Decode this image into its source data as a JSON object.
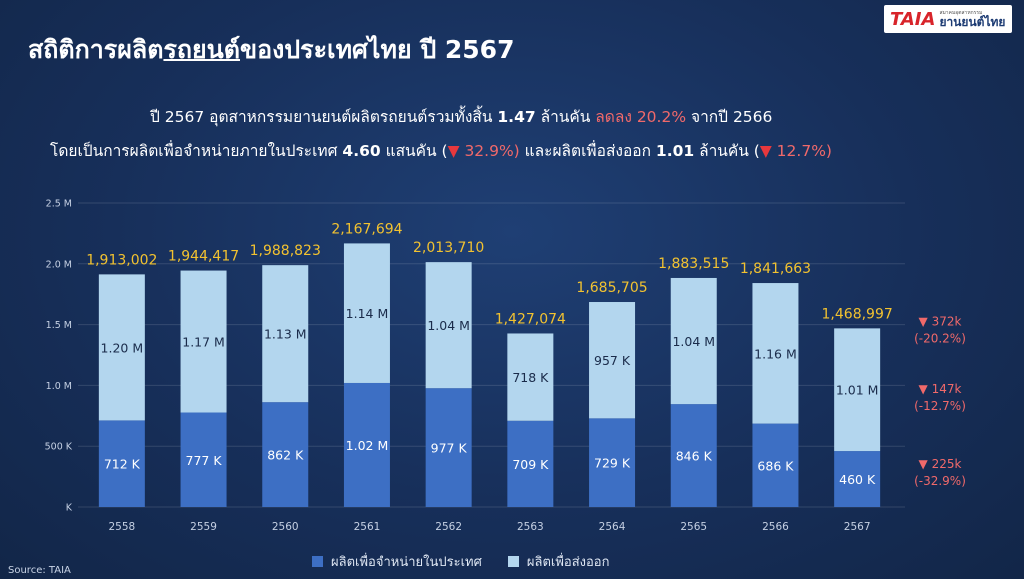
{
  "title_pre": "สถิติการผลิต",
  "title_ul": "รถยนต์",
  "title_post": "ของประเทศไทย ปี 2567",
  "logo": {
    "mark": "TAIA",
    "small": "สมาคมอุตสาหกรรม",
    "big": "ยานยนต์ไทย"
  },
  "summary": {
    "l1_a": "ปี 2567 อุตสาหกรรมยานยนต์ผลิตรถยนต์รวมทั้งสิ้น ",
    "l1_b": "1.47",
    "l1_c": " ล้านคัน ",
    "l1_d": "ลดลง 20.2%",
    "l1_e": " จากปี 2566",
    "l2_a": "โดยเป็นการผลิตเพื่อจำหน่ายภายในประเทศ ",
    "l2_b": "4.60",
    "l2_c": " แสนคัน (",
    "l2_tri1": "▼",
    "l2_d": " 32.9%)",
    "l2_e": "  และผลิตเพื่อส่งออก ",
    "l2_f": "1.01",
    "l2_g": " ล้านคัน (",
    "l2_tri2": "▼",
    "l2_h": " 12.7%)"
  },
  "colors": {
    "domestic": "#3d6fc4",
    "export": "#b3d6ee",
    "total": "#f2c230",
    "delta": "#f0696a",
    "axis": "#c5d0e3"
  },
  "chart_data": {
    "type": "bar",
    "stacked": true,
    "categories": [
      "2558",
      "2559",
      "2560",
      "2561",
      "2562",
      "2563",
      "2564",
      "2565",
      "2566",
      "2567"
    ],
    "series": [
      {
        "name": "ผลิตเพื่อจำหน่ายในประเทศ",
        "values": [
          712000,
          777000,
          862000,
          1020000,
          977000,
          709000,
          729000,
          846000,
          686000,
          460000
        ],
        "labels": [
          "712 K",
          "777 K",
          "862 K",
          "1.02 M",
          "977 K",
          "709 K",
          "729 K",
          "846 K",
          "686 K",
          "460 K"
        ]
      },
      {
        "name": "ผลิตเพื่อส่งออก",
        "values": [
          1200000,
          1170000,
          1130000,
          1140000,
          1040000,
          718000,
          957000,
          1040000,
          1160000,
          1010000
        ],
        "labels": [
          "1.20 M",
          "1.17 M",
          "1.13 M",
          "1.14 M",
          "1.04 M",
          "718 K",
          "957 K",
          "1.04 M",
          "1.16 M",
          "1.01 M"
        ]
      }
    ],
    "totals": [
      1913002,
      1944417,
      1988823,
      2167694,
      2013710,
      1427074,
      1685705,
      1883515,
      1841663,
      1468997
    ],
    "total_labels": [
      "1,913,002",
      "1,944,417",
      "1,988,823",
      "2,167,694",
      "2,013,710",
      "1,427,074",
      "1,685,705",
      "1,883,515",
      "1,841,663",
      "1,468,997"
    ],
    "y_ticks": [
      0,
      500000,
      1000000,
      1500000,
      2000000,
      2500000
    ],
    "y_tick_labels": [
      "K",
      "500 K",
      "1.0 M",
      "1.5 M",
      "2.0 M",
      "2.5 M"
    ],
    "ylim": [
      0,
      2500000
    ],
    "deltas": [
      {
        "value": "372k",
        "pct": "(-20.2%)"
      },
      {
        "value": "147k",
        "pct": "(-12.7%)"
      },
      {
        "value": "225k",
        "pct": "(-32.9%)"
      }
    ],
    "delta_marker": "▼",
    "legend_position": "bottom"
  },
  "source": "Source: TAIA"
}
